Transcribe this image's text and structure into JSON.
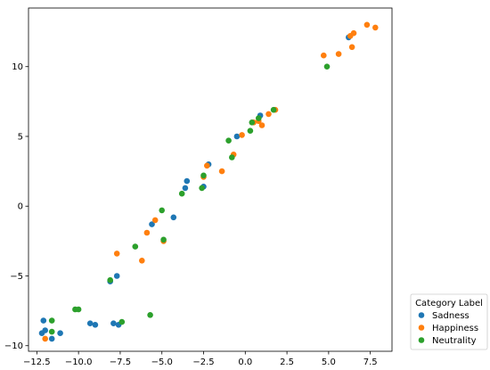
{
  "chart_data": {
    "type": "scatter",
    "title": "",
    "xlabel": "",
    "ylabel": "",
    "xlim": [
      -13.0,
      8.8
    ],
    "ylim": [
      -10.4,
      14.2
    ],
    "xticks": [
      -12.5,
      -10.0,
      -7.5,
      -5.0,
      -2.5,
      0.0,
      2.5,
      5.0,
      7.5
    ],
    "xtick_labels": [
      "−12.5",
      "−10.0",
      "−7.5",
      "−5.0",
      "−2.5",
      "0.0",
      "2.5",
      "5.0",
      "7.5"
    ],
    "yticks": [
      -10,
      -5,
      0,
      5,
      10
    ],
    "ytick_labels": [
      "−10",
      "−5",
      "0",
      "5",
      "10"
    ],
    "grid": false,
    "legend": {
      "title": "Category Label",
      "placement": "outside-lower-right"
    },
    "series": [
      {
        "name": "Sadness",
        "color": "#1f77b4",
        "points": [
          [
            -12.1,
            -8.2
          ],
          [
            -12.2,
            -9.1
          ],
          [
            -12.0,
            -8.9
          ],
          [
            -11.6,
            -9.5
          ],
          [
            -11.1,
            -9.1
          ],
          [
            -9.3,
            -8.4
          ],
          [
            -9.0,
            -8.5
          ],
          [
            -7.9,
            -8.4
          ],
          [
            -7.6,
            -8.5
          ],
          [
            -8.1,
            -5.4
          ],
          [
            -7.7,
            -5.0
          ],
          [
            -5.6,
            -1.3
          ],
          [
            -4.3,
            -0.8
          ],
          [
            -3.6,
            1.3
          ],
          [
            -3.5,
            1.8
          ],
          [
            -2.5,
            1.4
          ],
          [
            -2.2,
            3.0
          ],
          [
            -0.5,
            5.0
          ],
          [
            0.9,
            6.5
          ],
          [
            6.2,
            12.1
          ]
        ]
      },
      {
        "name": "Happiness",
        "color": "#ff7f0e",
        "points": [
          [
            -12.0,
            -9.5
          ],
          [
            -7.7,
            -3.4
          ],
          [
            -6.2,
            -3.9
          ],
          [
            -5.9,
            -1.9
          ],
          [
            -5.4,
            -1.0
          ],
          [
            -4.9,
            -2.5
          ],
          [
            -2.5,
            2.1
          ],
          [
            -2.3,
            2.9
          ],
          [
            -1.4,
            2.5
          ],
          [
            -0.7,
            3.7
          ],
          [
            -0.2,
            5.1
          ],
          [
            0.5,
            6.0
          ],
          [
            0.8,
            6.1
          ],
          [
            1.0,
            5.8
          ],
          [
            1.4,
            6.6
          ],
          [
            1.8,
            6.9
          ],
          [
            4.7,
            10.8
          ],
          [
            5.6,
            10.9
          ],
          [
            6.3,
            12.2
          ],
          [
            6.5,
            12.4
          ],
          [
            6.4,
            11.4
          ],
          [
            7.3,
            13.0
          ],
          [
            7.8,
            12.8
          ]
        ]
      },
      {
        "name": "Neutrality",
        "color": "#2ca02c",
        "points": [
          [
            -11.6,
            -8.2
          ],
          [
            -11.6,
            -9.0
          ],
          [
            -10.2,
            -7.4
          ],
          [
            -10.0,
            -7.4
          ],
          [
            -8.1,
            -5.3
          ],
          [
            -7.4,
            -8.3
          ],
          [
            -6.6,
            -2.9
          ],
          [
            -5.7,
            -7.8
          ],
          [
            -5.0,
            -0.3
          ],
          [
            -4.9,
            -2.4
          ],
          [
            -3.8,
            0.9
          ],
          [
            -2.6,
            1.3
          ],
          [
            -2.5,
            2.2
          ],
          [
            -1.0,
            4.7
          ],
          [
            -0.8,
            3.5
          ],
          [
            0.3,
            5.4
          ],
          [
            0.4,
            6.0
          ],
          [
            0.8,
            6.3
          ],
          [
            1.7,
            6.9
          ],
          [
            4.9,
            10.0
          ]
        ]
      }
    ]
  }
}
